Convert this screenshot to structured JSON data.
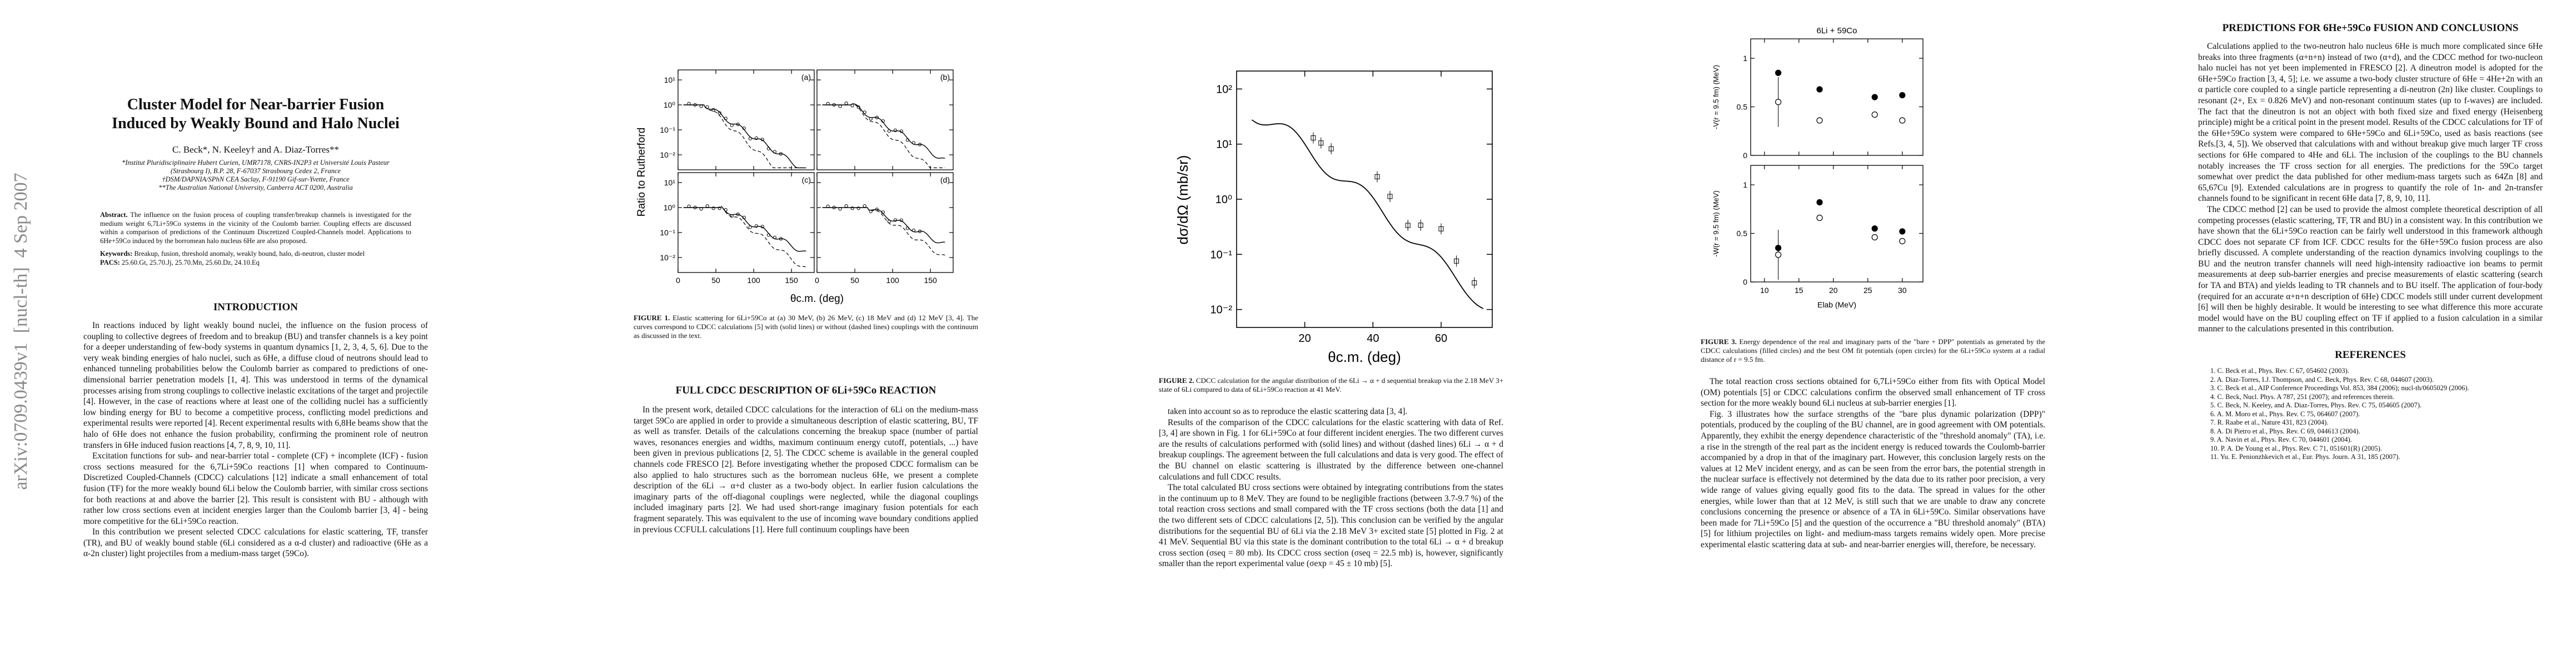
{
  "arxiv_stamp": "arXiv:0709.0439v1  [nucl-th]  4 Sep 2007",
  "page1": {
    "title": "Cluster Model for Near-barrier Fusion Induced by Weakly Bound and Halo Nuclei",
    "authors": "C. Beck*, N. Keeley† and A. Diaz-Torres**",
    "affiliations": [
      "*Institut Pluridisciplinaire Hubert Curien, UMR7178, CNRS-IN2P3 et Université Louis Pasteur (Strasbourg I), B.P. 28, F-67037 Strasbourg Cedex 2, France",
      "†DSM/DAPNIA/SPhN CEA Saclay, F-91190 Gif-sur-Yvette, France",
      "**The Australian National University, Canberra ACT 0200, Australia"
    ],
    "abstract_label": "Abstract.",
    "abstract": "The influence on the fusion process of coupling transfer/breakup channels is investigated for the medium weight 6,7Li+59Co systems in the vicinity of the Coulomb barrier. Coupling effects are discussed within a comparison of predictions of the Continuum Discretized Coupled-Channels model. Applications to 6He+59Co induced by the borromean halo nucleus 6He are also proposed.",
    "keywords_label": "Keywords:",
    "keywords": "Breakup, fusion, threshold anomaly, weakly bound, halo, di-neutron, cluster model",
    "pacs_label": "PACS:",
    "pacs": "25.60.Gt, 25.70.Jj, 25.70.Mn, 25.60.Dz, 24.10.Eq",
    "section_heading": "INTRODUCTION",
    "paragraphs": [
      "In reactions induced by light weakly bound nuclei, the influence on the fusion process of coupling to collective degrees of freedom and to breakup (BU) and transfer channels is a key point for a deeper understanding of few-body systems in quantum dynamics [1, 2, 3, 4, 5, 6]. Due to the very weak binding energies of halo nuclei, such as 6He, a diffuse cloud of neutrons should lead to enhanced tunneling probabilities below the Coulomb barrier as compared to predictions of one-dimensional barrier penetration models [1, 4]. This was understood in terms of the dynamical processes arising from strong couplings to collective inelastic excitations of the target and projectile [4]. However, in the case of reactions where at least one of the colliding nuclei has a sufficiently low binding energy for BU to become a competitive process, conflicting model predictions and experimental results were reported [4]. Recent experimental results with 6,8He beams show that the halo of 6He does not enhance the fusion probability, confirming the prominent role of neutron transfers in 6He induced fusion reactions [4, 7, 8, 9, 10, 11].",
      "Excitation functions for sub- and near-barrier total - complete (CF) + incomplete (ICF) - fusion cross sections measured for the 6,7Li+59Co reactions [1] when compared to Continuum-Discretized Coupled-Channels (CDCC) calculations [12] indicate a small enhancement of total fusion (TF) for the more weakly bound 6Li below the Coulomb barrier, with similar cross sections for both reactions at and above the barrier [2]. This result is consistent with BU - although with rather low cross sections even at incident energies larger than the Coulomb barrier [3, 4] - being more competitive for the 6Li+59Co reaction.",
      "In this contribution we present selected CDCC calculations for elastic scattering, TF, transfer (TR), and BU of weakly bound stable (6Li considered as a α-d cluster) and radioactive (6He as a α-2n cluster) light projectiles from a medium-mass target (59Co)."
    ]
  },
  "page2": {
    "figure": {
      "panel_labels": [
        "(a)",
        "(b)",
        "(c)",
        "(d)"
      ],
      "ylabel": "Ratio to Rutherford",
      "yticks": [
        "10¹",
        "10⁰",
        "10⁻¹",
        "10⁻²"
      ],
      "xticks": [
        "0",
        "50",
        "100",
        "150"
      ],
      "xlabel": "θc.m. (deg)"
    },
    "caption_label": "FIGURE 1.",
    "caption": "Elastic scattering for 6Li+59Co at (a) 30 MeV, (b) 26 MeV, (c) 18 MeV and (d) 12 MeV [3, 4]. The curves correspond to CDCC calculations [5] with (solid lines) or without (dashed lines) couplings with the continuum as discussed in the text.",
    "section_heading": "FULL CDCC DESCRIPTION OF 6Li+59Co REACTION",
    "paragraphs": [
      "In the present work, detailed CDCC calculations for the interaction of 6Li on the medium-mass target 59Co are applied in order to provide a simultaneous description of elastic scattering, BU, TF as well as transfer. Details of the calculations concerning the breakup space (number of partial waves, resonances energies and widths, maximum continuum energy cutoff, potentials, ...) have been given in previous publications [2, 5]. The CDCC scheme is available in the general coupled channels code FRESCO [2]. Before investigating whether the proposed CDCC formalism can be also applied to halo structures such as the borromean nucleus 6He, we present a complete description of the 6Li → α+d cluster as a two-body object. In earlier fusion calculations the imaginary parts of the off-diagonal couplings were neglected, while the diagonal couplings included imaginary parts [2]. We had used short-range imaginary fusion potentials for each fragment separately. This was equivalent to the use of incoming wave boundary conditions applied in previous CCFULL calculations [1]. Here full continuum couplings have been"
    ]
  },
  "page3": {
    "figure": {
      "ylabel": "dσ/dΩ (mb/sr)",
      "yticks": [
        "10²",
        "10¹",
        "10⁰",
        "10⁻¹",
        "10⁻²"
      ],
      "xticks": [
        "20",
        "40",
        "60"
      ],
      "xlabel": "θc.m. (deg)"
    },
    "caption_label": "FIGURE 2.",
    "caption": "CDCC calculation for the angular distribution of the 6Li → α + d sequential breakup via the 2.18 MeV 3+ state of 6Li compared to data of 6Li+59Co reaction at 41 MeV.",
    "paragraphs": [
      "taken into account so as to reproduce the elastic scattering data [3, 4].",
      "Results of the comparison of the CDCC calculations for the elastic scattering with data of Ref. [3, 4] are shown in Fig. 1 for 6Li+59Co at four different incident energies. The two different curves are the results of calculations performed with (solid lines) and without (dashed lines) 6Li → α + d breakup couplings. The agreement between the full calculations and data is very good. The effect of the BU channel on elastic scattering is illustrated by the difference between one-channel calculations and full CDCC results.",
      "The total calculated BU cross sections were obtained by integrating contributions from the states in the continuum up to 8 MeV. They are found to be negligible fractions (between 3.7-9.7 %) of the total reaction cross sections and small compared with the TF cross sections (both the data [1] and the two different sets of CDCC calculations [2, 5]). This conclusion can be verified by the angular distributions for the sequential BU of 6Li via the 2.18 MeV 3+ excited state [5] plotted in Fig. 2 at 41 MeV. Sequential BU via this state is the dominant contribution to the total 6Li → α + d breakup cross section (σseq = 80 mb). Its CDCC cross section (σseq = 22.5 mb) is, however, significantly smaller than the report experimental value (σexp = 45 ± 10 mb) [5]."
    ]
  },
  "page4": {
    "figure": {
      "title": "6Li + 59Co",
      "ylabel_top": "-V(r = 9.5 fm) (MeV)",
      "ylabel_bottom": "-W(r = 9.5 fm) (MeV)",
      "yticks": [
        "1",
        "0.5",
        "0"
      ],
      "xticks": [
        "10",
        "15",
        "20",
        "25",
        "30"
      ],
      "xlabel": "Elab (MeV)"
    },
    "caption_label": "FIGURE 3.",
    "caption": "Energy dependence of the real and imaginary parts of the \"bare + DPP\" potentials as generated by the CDCC calculations (filled circles) and the best OM fit potentials (open circles) for the 6Li+59Co system at a radial distance of r = 9.5 fm.",
    "paragraphs": [
      "The total reaction cross sections obtained for 6,7Li+59Co either from fits with Optical Model (OM) potentials [5] or CDCC calculations confirm the observed small enhancement of TF cross section for the more weakly bound 6Li nucleus at sub-barrier energies [1].",
      "Fig. 3 illustrates how the surface strengths of the \"bare plus dynamic polarization (DPP)\" potentials, produced by the coupling of the BU channel, are in good agreement with OM potentials. Apparently, they exhibit the energy dependence characteristic of the \"threshold anomaly\" (TA), i.e. a rise in the strength of the real part as the incident energy is reduced towards the Coulomb-barrier accompanied by a drop in that of the imaginary part. However, this conclusion largely rests on the values at 12 MeV incident energy, and as can be seen from the error bars, the potential strength in the nuclear surface is effectively not determined by the data due to its rather poor precision, a very wide range of values giving equally good fits to the data. The spread in values for the other energies, while lower than that at 12 MeV, is still such that we are unable to draw any concrete conclusions concerning the presence or absence of a TA in 6Li+59Co. Similar observations have been made for 7Li+59Co [5] and the question of the occurrence a \"BU threshold anomaly\" (BTA) [5] for lithium projectiles on light- and medium-mass targets remains widely open. More precise experimental elastic scattering data at sub- and near-barrier energies will, therefore, be necessary."
    ]
  },
  "page5": {
    "section_heading": "PREDICTIONS FOR 6He+59Co FUSION AND CONCLUSIONS",
    "paragraphs": [
      "Calculations applied to the two-neutron halo nucleus 6He is much more complicated since 6He breaks into three fragments (α+n+n) instead of two (α+d), and the CDCC method for two-nucleon halo nuclei has not yet been implemented in FRESCO [2]. A dineutron model is adopted for the 6He+59Co fraction [3, 4, 5]; i.e. we assume a two-body cluster structure of 6He = 4He+2n with an α particle core coupled to a single particle representing a di-neutron (2n) like cluster. Couplings to resonant (2+, Ex = 0.826 MeV) and non-resonant continuum states (up to f-waves) are included. The fact that the dineutron is not an object with both fixed size and fixed energy (Heisenberg principle) might be a critical point in the present model. Results of the CDCC calculations for TF of the 6He+59Co system were compared to 6He+59Co and 6Li+59Co, used as basis reactions (see Refs.[3, 4, 5]). We observed that calculations with and without breakup give much larger TF cross sections for 6He compared to 4He and 6Li. The inclusion of the couplings to the BU channels notably increases the TF cross section for all energies. The predictions for the 59Co target somewhat over predict the data published for other medium-mass targets such as 64Zn [8] and 65,67Cu [9]. Extended calculations are in progress to quantify the role of 1n- and 2n-transfer channels found to be significant in recent 6He data [7, 8, 9, 10, 11].",
      "The CDCC method [2] can be used to provide the almost complete theoretical description of all competing processes (elastic scattering, TF, TR and BU) in a consistent way. In this contribution we have shown that the 6Li+59Co reaction can be fairly well understood in this framework although CDCC does not separate CF from ICF. CDCC results for the 6He+59Co fusion process are also briefly discussed. A complete understanding of the reaction dynamics involving couplings to the BU and the neutron transfer channels will need high-intensity radioactive ion beams to permit measurements at deep sub-barrier energies and precise measurements of elastic scattering (search for TA and BTA) and yields leading to TR channels and to BU itself. The application of four-body (required for an accurate α+n+n description of 6He) CDCC models still under current development [6] will then be highly desirable. It would be interesting to see what difference this more accurate model would have on the BU coupling effect on TF if applied to a fusion calculation in a similar manner to the calculations presented in this contribution."
    ],
    "references_heading": "REFERENCES",
    "references": [
      "1. C. Beck et al., Phys. Rev. C 67, 054602 (2003).",
      "2. A. Diaz-Torres, I.J. Thompson, and C. Beck, Phys. Rev. C 68, 044607 (2003).",
      "3. C. Beck et al., AIP Conference Proceedings Vol. 853, 384 (2006); nucl-th/0605029 (2006).",
      "4. C. Beck, Nucl. Phys. A 787, 251 (2007); and references therein.",
      "5. C. Beck, N. Keeley, and A. Diaz-Torres, Phys. Rev. C 75, 054605 (2007).",
      "6. A. M. Moro et al., Phys. Rev. C 75, 064607 (2007).",
      "7. R. Raabe et al., Nature 431, 823 (2004).",
      "8. A. Di Pietro et al., Phys. Rev. C 69, 044613 (2004).",
      "9. A. Navin et al., Phys. Rev. C 70, 044601 (2004).",
      "10. P. A. De Young et al., Phys. Rev. C 71, 051601(R) (2005).",
      "11. Yu. E. Penionzhkevich et al., Eur. Phys. Journ. A 31, 185 (2007)."
    ]
  }
}
